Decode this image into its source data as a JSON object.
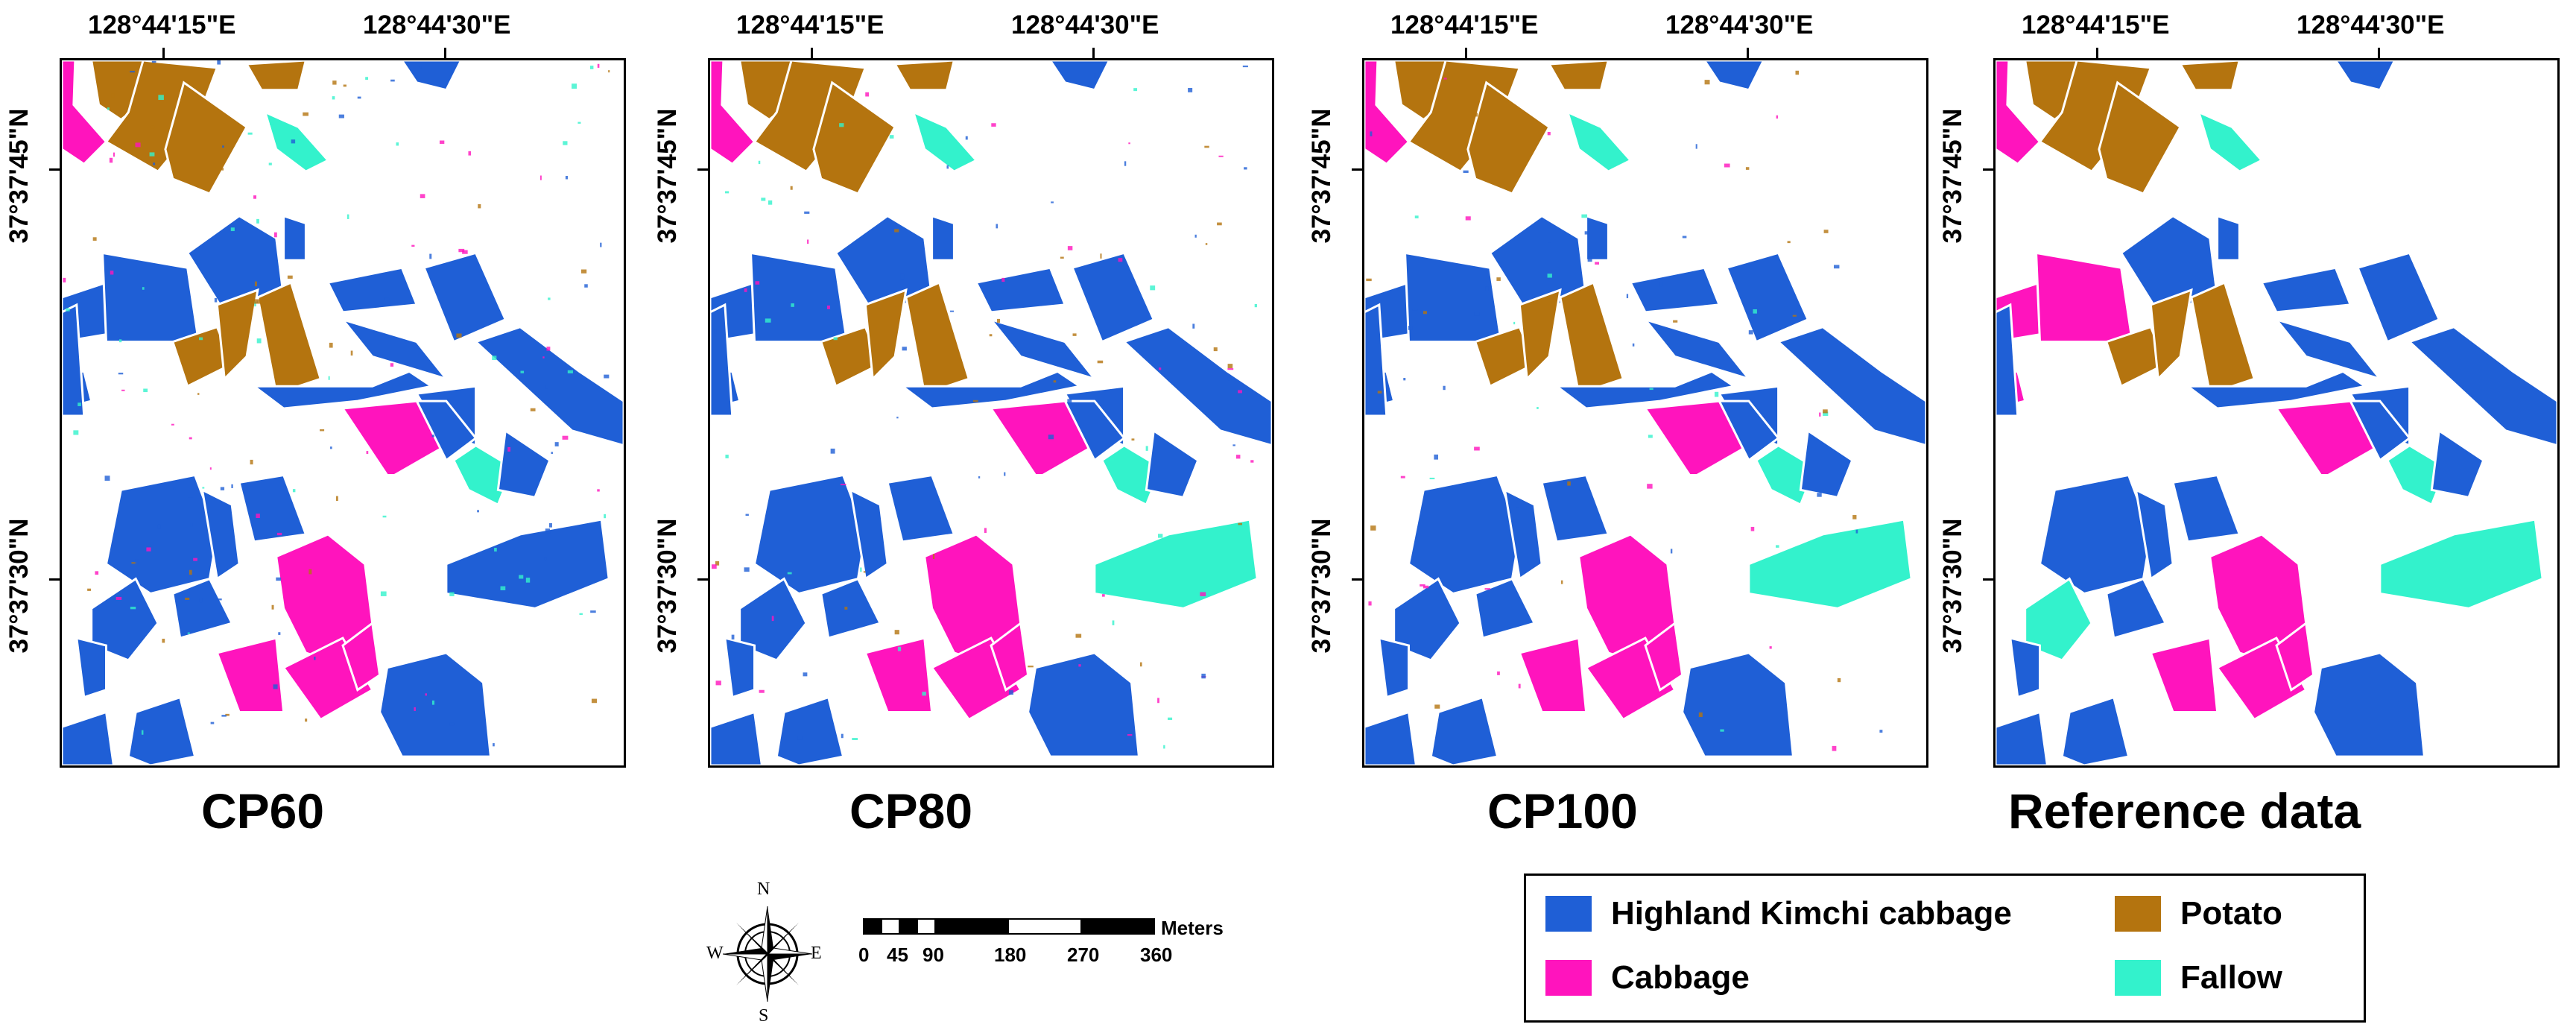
{
  "figure": {
    "panels": [
      {
        "id": "cp60",
        "label": "CP60"
      },
      {
        "id": "cp80",
        "label": "CP80"
      },
      {
        "id": "cp100",
        "label": "CP100"
      },
      {
        "id": "ref",
        "label": "Reference data"
      }
    ],
    "lon_labels": [
      "128°44'15\"E",
      "128°44'30\"E"
    ],
    "lat_labels": [
      "37°37'45\"N",
      "37°37'30\"N"
    ]
  },
  "compass": {
    "n": "N",
    "s": "S",
    "e": "E",
    "w": "W"
  },
  "scale_bar": {
    "labels": [
      "0",
      "45",
      "90",
      "180",
      "270",
      "360"
    ],
    "unit": "Meters"
  },
  "legend": {
    "items": [
      {
        "label": "Highland Kimchi cabbage",
        "color": "#1f5fd6",
        "icon": "blue-swatch"
      },
      {
        "label": "Potato",
        "color": "#b4740f",
        "icon": "brown-swatch"
      },
      {
        "label": "Cabbage",
        "color": "#ff14bd",
        "icon": "magenta-swatch"
      },
      {
        "label": "Fallow",
        "color": "#33f2cc",
        "icon": "cyan-swatch"
      }
    ]
  },
  "classes": {
    "kimchi": "#1f5fd6",
    "potato": "#b4740f",
    "cabbage": "#ff14bd",
    "fallow": "#33f2cc"
  }
}
